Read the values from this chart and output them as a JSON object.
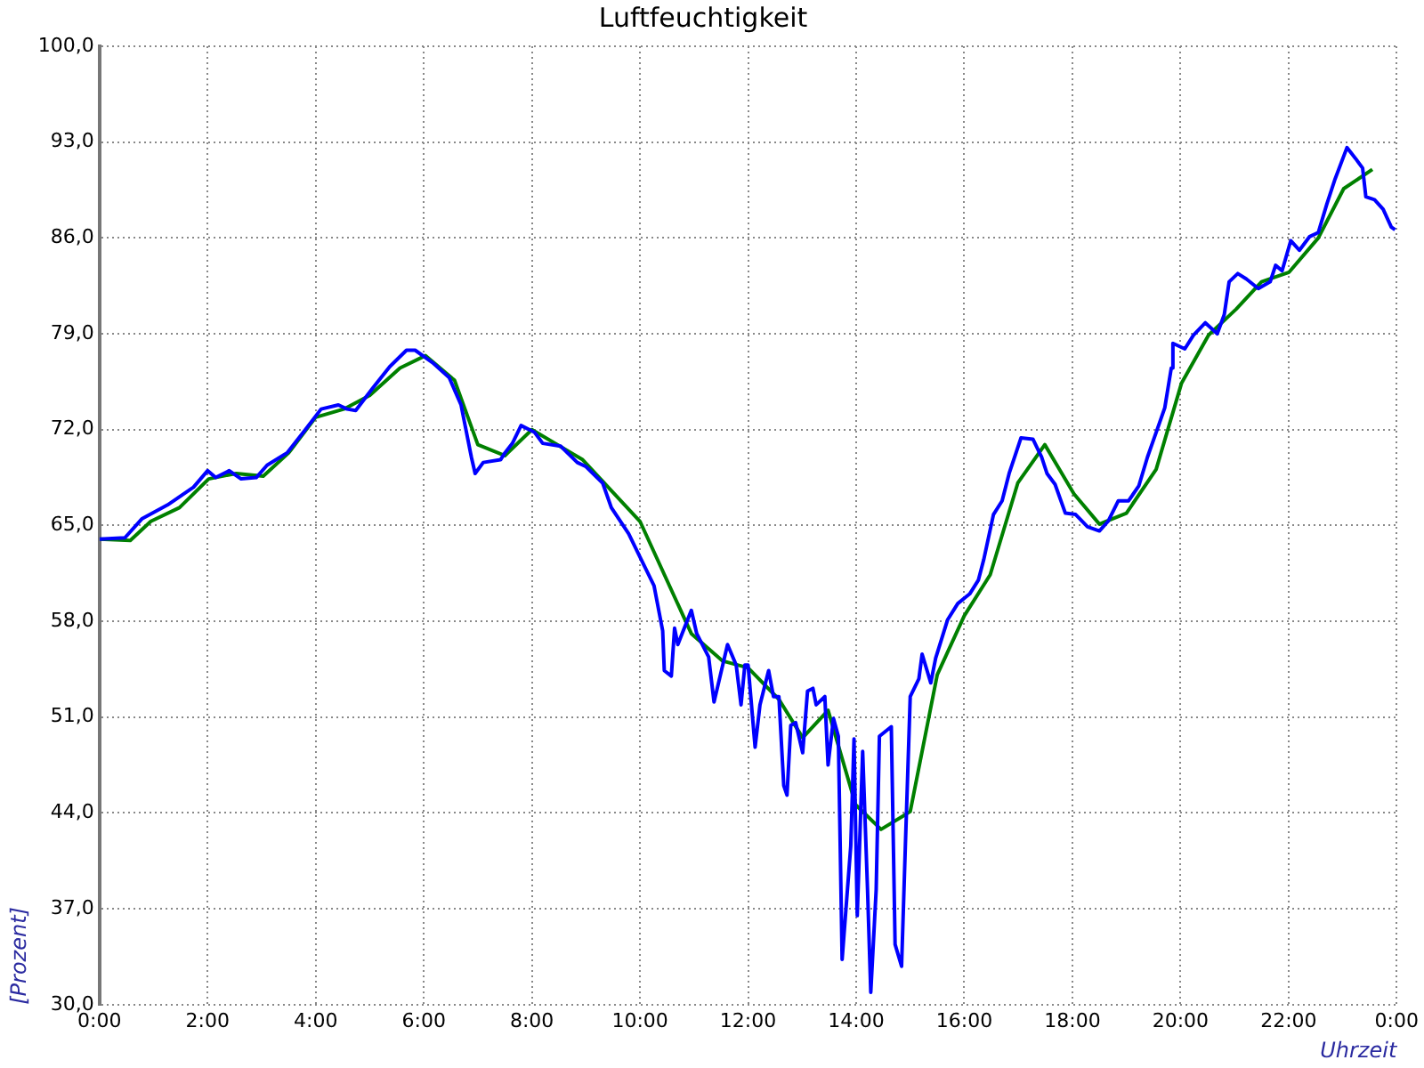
{
  "chart_data": {
    "type": "line",
    "title": "Luftfeuchtigkeit",
    "xlabel": "Uhrzeit",
    "ylabel": "[Prozent]",
    "xlim": [
      0,
      24
    ],
    "xticks": [
      {
        "value": 0,
        "label": "0:00"
      },
      {
        "value": 2,
        "label": "2:00"
      },
      {
        "value": 4,
        "label": "4:00"
      },
      {
        "value": 6,
        "label": "6:00"
      },
      {
        "value": 8,
        "label": "8:00"
      },
      {
        "value": 10,
        "label": "10:00"
      },
      {
        "value": 12,
        "label": "12:00"
      },
      {
        "value": 14,
        "label": "14:00"
      },
      {
        "value": 16,
        "label": "16:00"
      },
      {
        "value": 18,
        "label": "18:00"
      },
      {
        "value": 20,
        "label": "20:00"
      },
      {
        "value": 22,
        "label": "22:00"
      },
      {
        "value": 24,
        "label": "0:00"
      }
    ],
    "ylim": [
      30,
      100
    ],
    "yticks": [
      {
        "value": 30,
        "label": "30,0"
      },
      {
        "value": 37,
        "label": "37,0"
      },
      {
        "value": 44,
        "label": "44,0"
      },
      {
        "value": 51,
        "label": "51,0"
      },
      {
        "value": 58,
        "label": "58,0"
      },
      {
        "value": 65,
        "label": "65,0"
      },
      {
        "value": 72,
        "label": "72,0"
      },
      {
        "value": 79,
        "label": "79,0"
      },
      {
        "value": 86,
        "label": "86,0"
      },
      {
        "value": 93,
        "label": "93,0"
      },
      {
        "value": 100,
        "label": "100,0"
      }
    ],
    "grid": true,
    "marker": "none",
    "line_style": "solid",
    "series": [
      {
        "color": "#0000ff",
        "x": [
          0,
          0.47,
          0.79,
          1.26,
          1.74,
          2.0,
          2.15,
          2.4,
          2.62,
          2.9,
          3.1,
          3.47,
          3.79,
          4.1,
          4.42,
          4.58,
          4.74,
          5.05,
          5.37,
          5.68,
          5.84,
          6.16,
          6.47,
          6.69,
          6.88,
          6.95,
          7.1,
          7.42,
          7.5,
          7.64,
          7.8,
          8.05,
          8.2,
          8.53,
          8.84,
          9.0,
          9.31,
          9.47,
          9.79,
          9.95,
          10.26,
          10.42,
          10.45,
          10.58,
          10.64,
          10.7,
          10.95,
          11.05,
          11.27,
          11.37,
          11.62,
          11.78,
          11.87,
          11.94,
          12.0,
          12.13,
          12.22,
          12.38,
          12.47,
          12.57,
          12.66,
          12.72,
          12.79,
          12.88,
          13.01,
          13.1,
          13.2,
          13.26,
          13.42,
          13.48,
          13.58,
          13.67,
          13.74,
          13.9,
          13.96,
          14.02,
          14.12,
          14.21,
          14.27,
          14.37,
          14.43,
          14.65,
          14.72,
          14.84,
          14.91,
          15.0,
          15.16,
          15.22,
          15.38,
          15.47,
          15.69,
          15.88,
          16.1,
          16.26,
          16.36,
          16.54,
          16.7,
          16.83,
          17.05,
          17.27,
          17.43,
          17.53,
          17.68,
          17.87,
          18.06,
          18.28,
          18.5,
          18.66,
          18.85,
          19.04,
          19.23,
          19.39,
          19.55,
          19.71,
          19.83,
          19.86,
          20.08,
          20.24,
          20.46,
          20.68,
          20.81,
          20.9,
          21.06,
          21.22,
          21.44,
          21.66,
          21.76,
          21.88,
          22.04,
          22.2,
          22.39,
          22.55,
          22.71,
          22.86,
          23.08,
          23.24,
          23.37,
          23.43,
          23.59,
          23.75,
          23.9,
          23.97
        ],
        "values": [
          64.0,
          64.1,
          65.5,
          66.5,
          67.8,
          69.0,
          68.5,
          69.0,
          68.4,
          68.5,
          69.4,
          70.3,
          71.9,
          73.5,
          73.8,
          73.5,
          73.4,
          75.0,
          76.6,
          77.8,
          77.8,
          76.9,
          75.8,
          73.8,
          70.0,
          68.8,
          69.6,
          69.8,
          70.3,
          71.0,
          72.3,
          71.8,
          71.0,
          70.8,
          69.6,
          69.3,
          68.1,
          66.3,
          64.4,
          63.1,
          60.6,
          57.3,
          54.4,
          54.0,
          57.5,
          56.3,
          58.8,
          57.1,
          55.4,
          52.1,
          56.3,
          54.8,
          51.9,
          54.8,
          54.8,
          48.8,
          51.9,
          54.4,
          52.5,
          52.5,
          46.0,
          45.3,
          50.4,
          50.6,
          48.4,
          52.9,
          53.1,
          51.9,
          52.5,
          47.5,
          50.9,
          49.6,
          33.3,
          41.6,
          49.4,
          36.5,
          48.5,
          38.4,
          30.9,
          38.4,
          49.6,
          50.3,
          34.4,
          32.8,
          41.6,
          52.5,
          53.8,
          55.6,
          53.5,
          55.3,
          58.1,
          59.3,
          60.0,
          61.0,
          62.5,
          65.8,
          66.8,
          68.8,
          71.4,
          71.3,
          70.0,
          68.8,
          68.0,
          65.9,
          65.8,
          64.9,
          64.6,
          65.3,
          66.8,
          66.8,
          67.9,
          70.0,
          71.8,
          73.6,
          76.5,
          78.3,
          77.9,
          78.9,
          79.8,
          79.0,
          80.4,
          82.8,
          83.4,
          83.0,
          82.3,
          82.8,
          84.0,
          83.6,
          85.8,
          85.1,
          86.1,
          86.4,
          88.5,
          90.3,
          92.6,
          91.8,
          91.1,
          89.0,
          88.8,
          88.1,
          86.8,
          86.6
        ]
      },
      {
        "color": "#008000",
        "x": [
          0,
          0.57,
          0.95,
          1.48,
          2.02,
          2.53,
          3.03,
          3.5,
          4.0,
          4.52,
          5.0,
          5.56,
          6.03,
          6.57,
          7.0,
          7.5,
          8.0,
          8.94,
          10.0,
          10.95,
          11.53,
          12.0,
          12.57,
          13.01,
          13.48,
          13.99,
          14.46,
          15.0,
          15.5,
          16.0,
          16.48,
          16.99,
          17.49,
          18.03,
          18.5,
          19.0,
          19.55,
          20.02,
          20.52,
          21.03,
          21.5,
          22.01,
          22.55,
          23.02,
          23.55
        ],
        "values": [
          64.0,
          63.9,
          65.3,
          66.3,
          68.4,
          68.8,
          68.6,
          70.3,
          72.9,
          73.5,
          74.5,
          76.5,
          77.4,
          75.6,
          70.9,
          70.1,
          72.0,
          69.8,
          65.3,
          57.1,
          55.1,
          54.6,
          52.3,
          49.5,
          51.5,
          44.6,
          42.8,
          44.1,
          54.1,
          58.4,
          61.4,
          68.1,
          70.9,
          67.3,
          65.1,
          65.9,
          69.1,
          75.4,
          78.9,
          80.8,
          82.8,
          83.5,
          86.0,
          89.6,
          91.0
        ]
      }
    ]
  }
}
